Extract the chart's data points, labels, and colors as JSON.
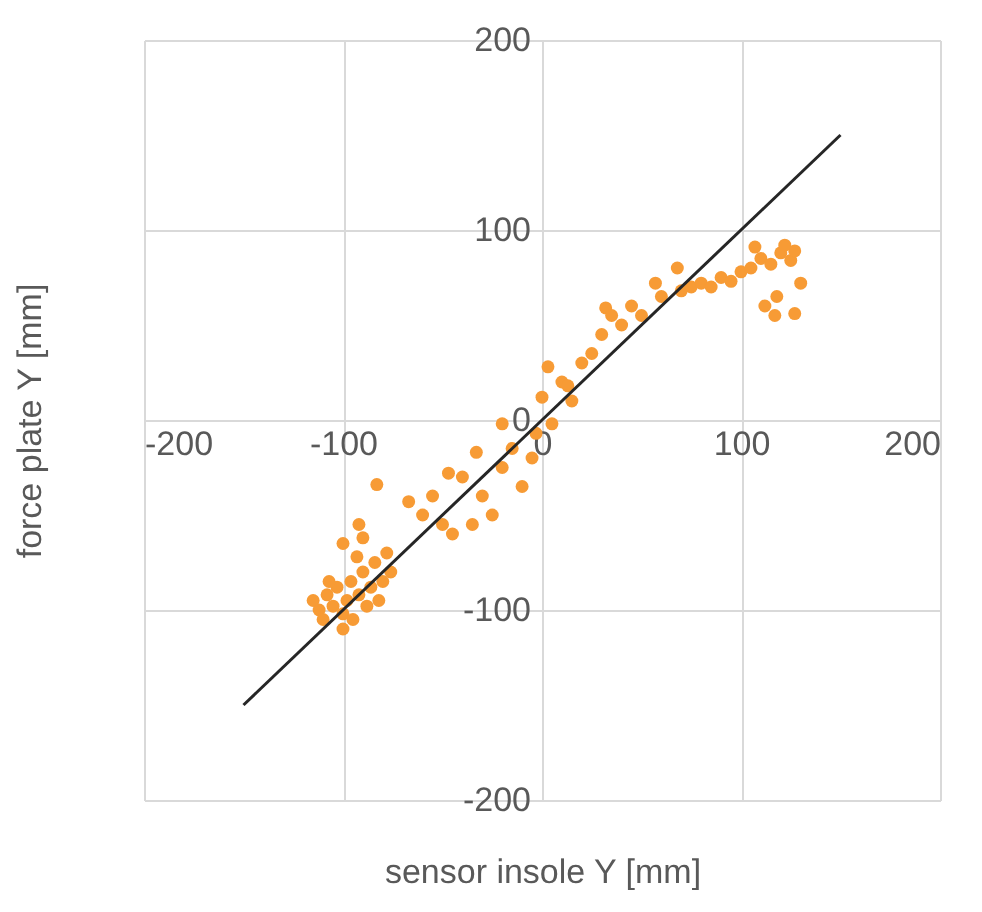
{
  "chart_data": {
    "type": "scatter",
    "xlabel": "sensor insole Y [mm]",
    "ylabel": "force plate Y [mm]",
    "xlim": [
      -200,
      200
    ],
    "ylim": [
      -200,
      200
    ],
    "xticks": [
      -200,
      -100,
      0,
      100,
      200
    ],
    "yticks": [
      -200,
      -100,
      0,
      100,
      200
    ],
    "grid": true,
    "series": [
      {
        "color": "#f79b35",
        "marker": "circle",
        "x": [
          -115,
          -112,
          -110,
          -108,
          -105,
          -103,
          -100,
          -98,
          -96,
          -95,
          -92,
          -90,
          -88,
          -86,
          -84,
          -82,
          -80,
          -78,
          -76,
          -100,
          -107,
          -93,
          -90,
          -92,
          -100,
          -83,
          -67,
          -60,
          -55,
          -50,
          -45,
          -47,
          -40,
          -35,
          -33,
          -30,
          -25,
          -20,
          -20,
          -15,
          -10,
          -5,
          -3,
          3,
          0,
          5,
          10,
          13,
          15,
          20,
          25,
          30,
          32,
          35,
          40,
          45,
          50,
          57,
          60,
          68,
          70,
          75,
          80,
          85,
          90,
          95,
          100,
          105,
          107,
          110,
          115,
          117,
          120,
          125,
          127,
          130,
          127,
          122,
          112,
          118
        ],
        "values": [
          -95,
          -100,
          -105,
          -92,
          -98,
          -88,
          -102,
          -95,
          -85,
          -105,
          -92,
          -80,
          -98,
          -88,
          -75,
          -95,
          -85,
          -70,
          -80,
          -110,
          -85,
          -72,
          -62,
          -55,
          -65,
          -34,
          -43,
          -50,
          -40,
          -55,
          -60,
          -28,
          -30,
          -55,
          -17,
          -40,
          -50,
          -25,
          -2,
          -15,
          -35,
          -20,
          -7,
          28,
          12,
          -2,
          20,
          18,
          10,
          30,
          35,
          45,
          59,
          55,
          50,
          60,
          55,
          72,
          65,
          80,
          68,
          70,
          72,
          70,
          75,
          73,
          78,
          80,
          91,
          85,
          82,
          55,
          88,
          84,
          89,
          72,
          56,
          92,
          60,
          65
        ]
      },
      {
        "type": "line",
        "color": "#262626",
        "x": [
          -150,
          150
        ],
        "values": [
          -150,
          150
        ]
      }
    ]
  }
}
